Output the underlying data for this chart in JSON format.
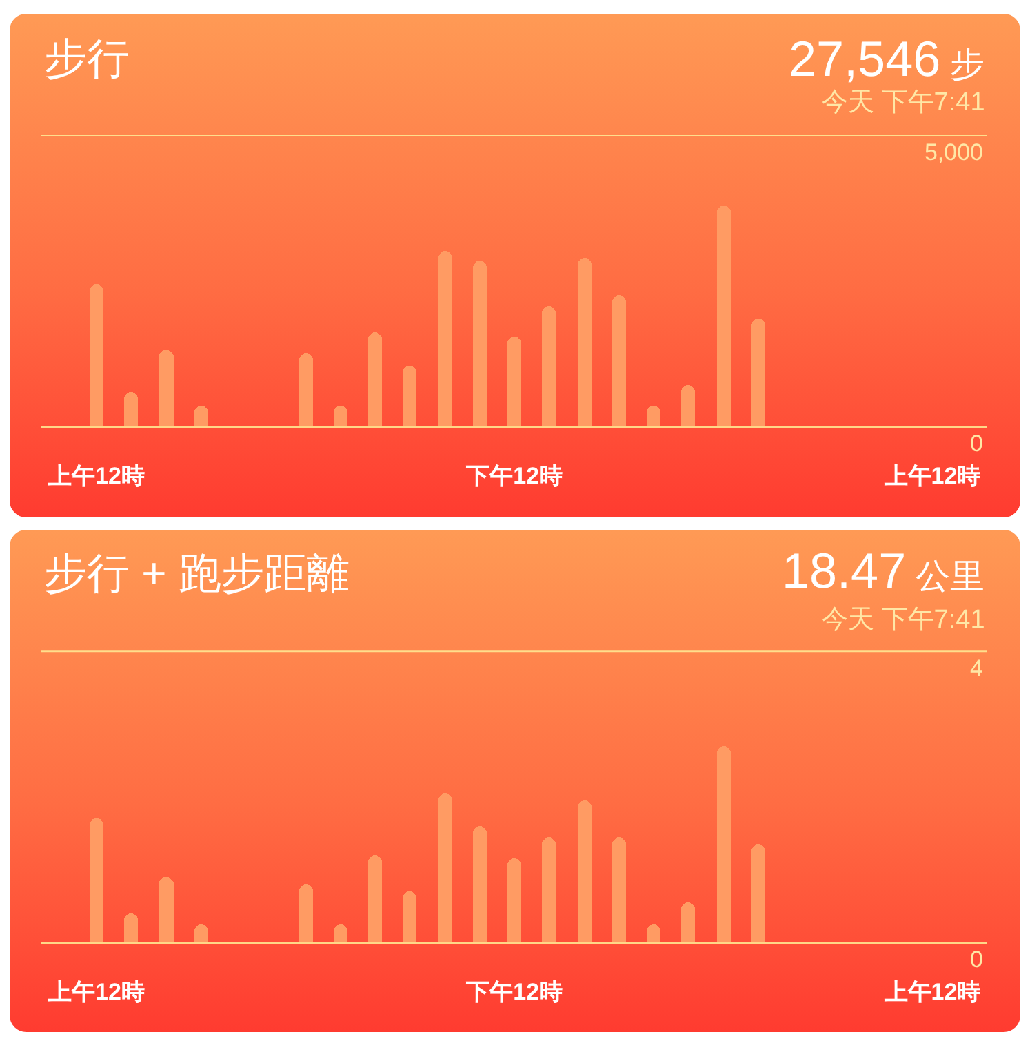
{
  "chart_data": [
    {
      "type": "bar",
      "title": "步行",
      "annotations": [
        "27,546 步",
        "今天 下午7:41"
      ],
      "categories": [
        "上午12時",
        null,
        null,
        null,
        null,
        null,
        null,
        null,
        null,
        null,
        null,
        null,
        "下午12時",
        null,
        null,
        null,
        null,
        null,
        null,
        null,
        null,
        null,
        null,
        null,
        "上午12時"
      ],
      "values": [
        2450,
        600,
        1300,
        350,
        null,
        null,
        1250,
        350,
        1600,
        1050,
        3000,
        2850,
        1550,
        2050,
        2900,
        2250,
        350,
        700,
        3800,
        1850,
        null,
        null,
        null,
        null,
        null
      ],
      "color": "#ff9b63",
      "ylim": [
        0,
        7085
      ],
      "yticks": [
        0,
        {
          "value": 5000,
          "label": "5,000"
        }
      ],
      "ref_lines": [
        {
          "axis": "y",
          "value": 5000,
          "color": "#ffde8c"
        }
      ]
    },
    {
      "type": "bar",
      "title": "步行 + 跑步距離",
      "annotations": [
        "18.47 公里",
        "今天 下午7:41"
      ],
      "categories": [
        "上午12時",
        null,
        null,
        null,
        null,
        null,
        null,
        null,
        null,
        null,
        null,
        null,
        "下午12時",
        null,
        null,
        null,
        null,
        null,
        null,
        null,
        null,
        null,
        null,
        null,
        "上午12時"
      ],
      "values": [
        1.7,
        0.4,
        0.9,
        0.25,
        null,
        null,
        0.8,
        0.25,
        1.2,
        0.7,
        2.05,
        1.6,
        1.15,
        1.45,
        1.95,
        1.45,
        0.25,
        0.55,
        2.7,
        1.35,
        null,
        null,
        null,
        null,
        null
      ],
      "color": "#ff9b63",
      "ylim": [
        0,
        5.67
      ],
      "yticks": [
        0,
        4
      ],
      "ref_lines": [
        {
          "axis": "y",
          "value": 4,
          "color": "#ffde8c"
        }
      ]
    }
  ]
}
